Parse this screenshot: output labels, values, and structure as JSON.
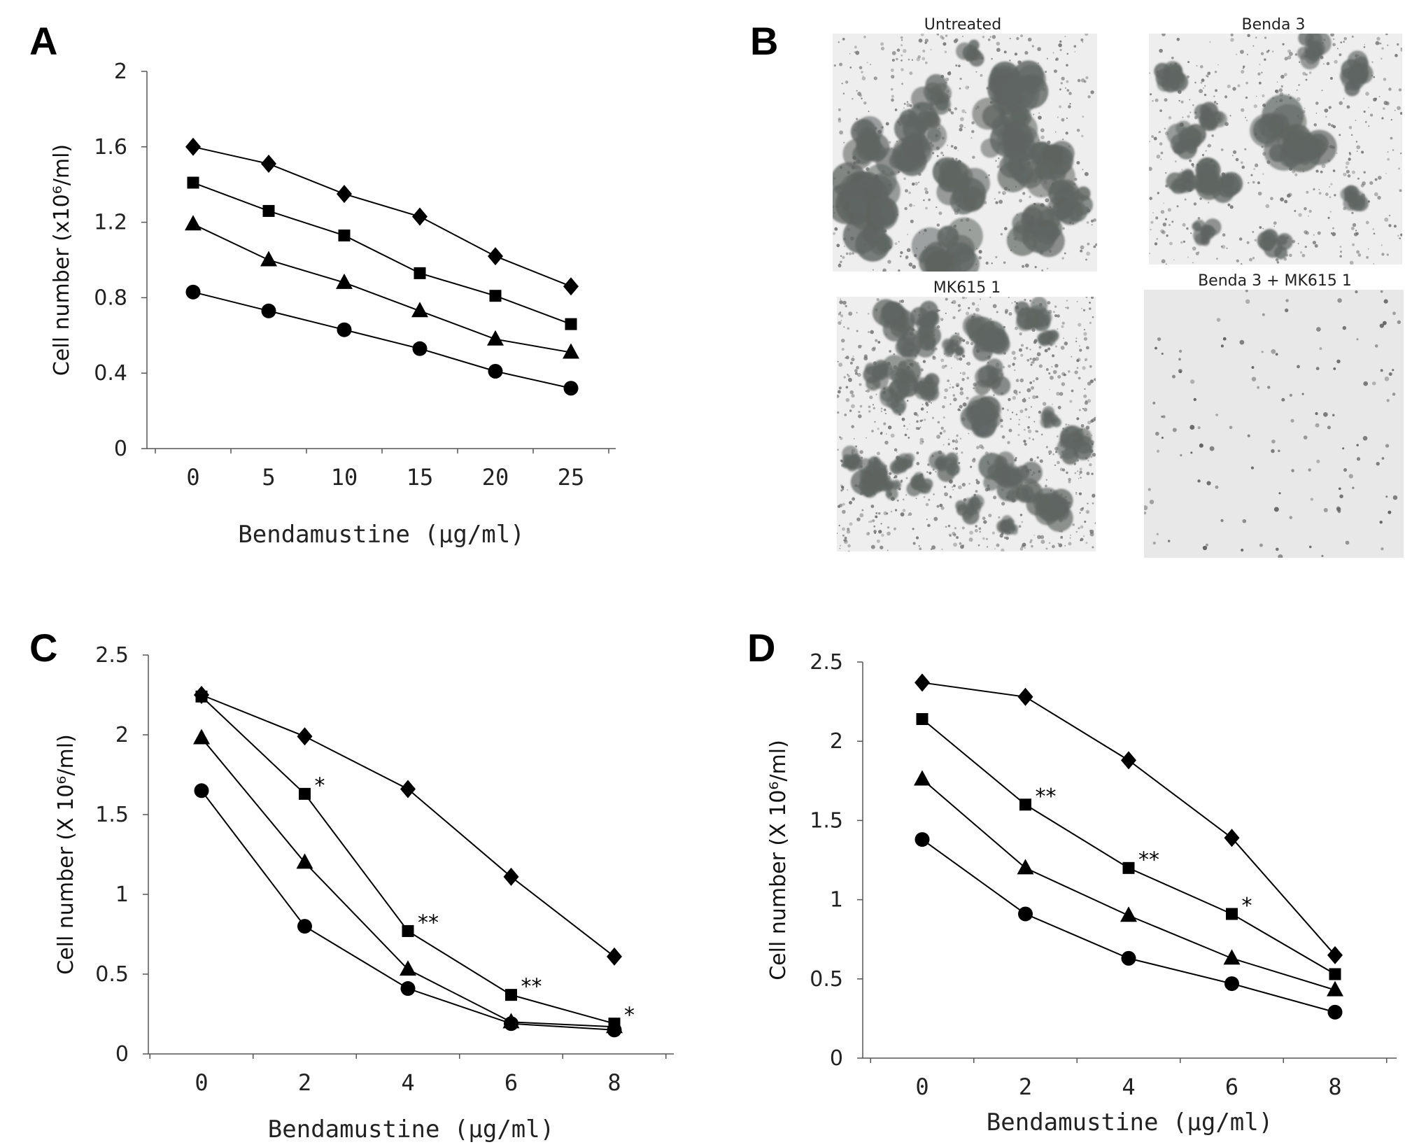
{
  "figure": {
    "panels": {
      "A": {
        "letter": "A"
      },
      "B": {
        "letter": "B"
      },
      "C": {
        "letter": "C"
      },
      "D": {
        "letter": "D"
      }
    },
    "micrographs": [
      {
        "title": "Untreated",
        "density": "dense"
      },
      {
        "title": "Benda 3",
        "density": "dense"
      },
      {
        "title": "MK615 1",
        "density": "medium"
      },
      {
        "title": "Benda 3 + MK615 1",
        "density": "sparse"
      }
    ]
  },
  "chart_data": [
    {
      "type": "line",
      "panel": "A",
      "xlabel": "Bendamustine (μg/ml)",
      "ylabel": "Cell number (x10⁶/ml)",
      "ylim": [
        0,
        2
      ],
      "yticks": [
        "0",
        "0.4",
        "0.8",
        "1.2",
        "1.6",
        "2"
      ],
      "x": [
        0,
        5,
        10,
        15,
        20,
        25
      ],
      "xticks": [
        "0",
        "5",
        "10",
        "15",
        "20",
        "25"
      ],
      "series": [
        {
          "marker": "diamond",
          "values": [
            1.6,
            1.51,
            1.35,
            1.23,
            1.02,
            0.86
          ]
        },
        {
          "marker": "square",
          "values": [
            1.41,
            1.26,
            1.13,
            0.93,
            0.81,
            0.66
          ]
        },
        {
          "marker": "triangle",
          "values": [
            1.19,
            1.0,
            0.88,
            0.73,
            0.58,
            0.51
          ]
        },
        {
          "marker": "circle",
          "values": [
            0.83,
            0.73,
            0.63,
            0.53,
            0.41,
            0.32
          ]
        }
      ],
      "annotations": []
    },
    {
      "type": "line",
      "panel": "C",
      "xlabel": "Bendamustine (μg/ml)",
      "ylabel": "Cell number (X 10⁶/ml)",
      "ylim": [
        0,
        2.5
      ],
      "yticks": [
        "0",
        "0.5",
        "1",
        "1.5",
        "2",
        "2.5"
      ],
      "x": [
        0,
        2,
        4,
        6,
        8
      ],
      "xticks": [
        "0",
        "2",
        "4",
        "6",
        "8"
      ],
      "series": [
        {
          "marker": "diamond",
          "values": [
            2.25,
            1.99,
            1.66,
            1.11,
            0.61
          ]
        },
        {
          "marker": "square",
          "values": [
            2.24,
            1.63,
            0.77,
            0.37,
            0.19
          ]
        },
        {
          "marker": "triangle",
          "values": [
            1.98,
            1.2,
            0.53,
            0.2,
            0.17
          ]
        },
        {
          "marker": "circle",
          "values": [
            1.65,
            0.8,
            0.41,
            0.19,
            0.15
          ]
        }
      ],
      "annotations": [
        {
          "text": "*",
          "x": 2,
          "y": 1.63
        },
        {
          "text": "**",
          "x": 4,
          "y": 0.77
        },
        {
          "text": "**",
          "x": 6,
          "y": 0.37
        },
        {
          "text": "*",
          "x": 8,
          "y": 0.19
        }
      ]
    },
    {
      "type": "line",
      "panel": "D",
      "xlabel": "Bendamustine (μg/ml)",
      "ylabel": "Cell number (X 10⁶/ml)",
      "ylim": [
        0,
        2.5
      ],
      "yticks": [
        "0",
        "0.5",
        "1",
        "1.5",
        "2",
        "2.5"
      ],
      "x": [
        0,
        2,
        4,
        6,
        8
      ],
      "xticks": [
        "0",
        "2",
        "4",
        "6",
        "8"
      ],
      "series": [
        {
          "marker": "diamond",
          "values": [
            2.37,
            2.28,
            1.88,
            1.39,
            0.65
          ]
        },
        {
          "marker": "square",
          "values": [
            2.14,
            1.6,
            1.2,
            0.91,
            0.53
          ]
        },
        {
          "marker": "triangle",
          "values": [
            1.76,
            1.2,
            0.9,
            0.63,
            0.43
          ]
        },
        {
          "marker": "circle",
          "values": [
            1.38,
            0.91,
            0.63,
            0.47,
            0.29
          ]
        }
      ],
      "annotations": [
        {
          "text": "**",
          "x": 2,
          "y": 1.6
        },
        {
          "text": "**",
          "x": 4,
          "y": 1.2
        },
        {
          "text": "*",
          "x": 6,
          "y": 0.91
        }
      ]
    }
  ]
}
